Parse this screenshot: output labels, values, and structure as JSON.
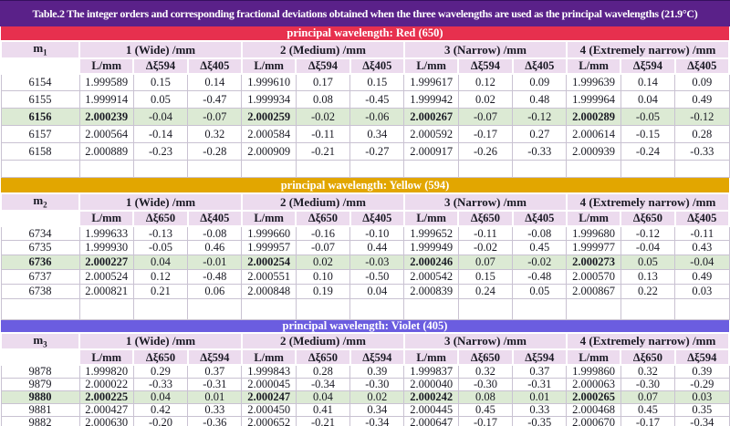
{
  "title": "Table.2 The integer orders and corresponding fractional deviations obtained when the three wavelengths are used as the principal wavelengths (21.9°C)",
  "colors": {
    "title_bg": "#5a2189",
    "red_bar": "#e7304e",
    "yellow_bar": "#e2a600",
    "violet_bar": "#6b5de0",
    "header_bg": "#ecdbee",
    "highlight_row": "#dcead4"
  },
  "group_headers": [
    "1 (Wide) /mm",
    "2 (Medium) /mm",
    "3 (Narrow) /mm",
    "4 (Extremely narrow) /mm"
  ],
  "sections": [
    {
      "id": "red",
      "bar_label": "principal wavelength: Red (650)",
      "bar_color": "#e7304e",
      "m_base": "m",
      "m_sub": "1",
      "sub_headers": [
        "L/mm",
        "Δξ594",
        "Δξ405"
      ],
      "rows": [
        {
          "m": "6154",
          "highlight": false,
          "values": [
            "1.999589",
            "0.15",
            "0.14",
            "1.999610",
            "0.17",
            "0.15",
            "1.999617",
            "0.12",
            "0.09",
            "1.999639",
            "0.14",
            "0.09"
          ]
        },
        {
          "m": "6155",
          "highlight": false,
          "values": [
            "1.999914",
            "0.05",
            "-0.47",
            "1.999934",
            "0.08",
            "-0.45",
            "1.999942",
            "0.02",
            "0.48",
            "1.999964",
            "0.04",
            "0.49"
          ]
        },
        {
          "m": "6156",
          "highlight": true,
          "values": [
            "2.000239",
            "-0.04",
            "-0.07",
            "2.000259",
            "-0.02",
            "-0.06",
            "2.000267",
            "-0.07",
            "-0.12",
            "2.000289",
            "-0.05",
            "-0.12"
          ]
        },
        {
          "m": "6157",
          "highlight": false,
          "values": [
            "2.000564",
            "-0.14",
            "0.32",
            "2.000584",
            "-0.11",
            "0.34",
            "2.000592",
            "-0.17",
            "0.27",
            "2.000614",
            "-0.15",
            "0.28"
          ]
        },
        {
          "m": "6158",
          "highlight": false,
          "values": [
            "2.000889",
            "-0.23",
            "-0.28",
            "2.000909",
            "-0.21",
            "-0.27",
            "2.000917",
            "-0.26",
            "-0.33",
            "2.000939",
            "-0.24",
            "-0.33"
          ]
        }
      ]
    },
    {
      "id": "yellow",
      "bar_label": "principal wavelength: Yellow (594)",
      "bar_color": "#e2a600",
      "m_base": "m",
      "m_sub": "2",
      "sub_headers": [
        "L/mm",
        "Δξ650",
        "Δξ405"
      ],
      "rows": [
        {
          "m": "6734",
          "highlight": false,
          "values": [
            "1.999633",
            "-0.13",
            "-0.08",
            "1.999660",
            "-0.16",
            "-0.10",
            "1.999652",
            "-0.11",
            "-0.08",
            "1.999680",
            "-0.12",
            "-0.11"
          ]
        },
        {
          "m": "6735",
          "highlight": false,
          "values": [
            "1.999930",
            "-0.05",
            "0.46",
            "1.999957",
            "-0.07",
            "0.44",
            "1.999949",
            "-0.02",
            "0.45",
            "1.999977",
            "-0.04",
            "0.43"
          ]
        },
        {
          "m": "6736",
          "highlight": true,
          "values": [
            "2.000227",
            "0.04",
            "-0.01",
            "2.000254",
            "0.02",
            "-0.03",
            "2.000246",
            "0.07",
            "-0.02",
            "2.000273",
            "0.05",
            "-0.04"
          ]
        },
        {
          "m": "6737",
          "highlight": false,
          "values": [
            "2.000524",
            "0.12",
            "-0.48",
            "2.000551",
            "0.10",
            "-0.50",
            "2.000542",
            "0.15",
            "-0.48",
            "2.000570",
            "0.13",
            "0.49"
          ]
        },
        {
          "m": "6738",
          "highlight": false,
          "values": [
            "2.000821",
            "0.21",
            "0.06",
            "2.000848",
            "0.19",
            "0.04",
            "2.000839",
            "0.24",
            "0.05",
            "2.000867",
            "0.22",
            "0.03"
          ]
        }
      ]
    },
    {
      "id": "violet",
      "bar_label": "principal wavelength: Violet (405)",
      "bar_color": "#6b5de0",
      "m_base": "m",
      "m_sub": "3",
      "sub_headers": [
        "L/mm",
        "Δξ650",
        "Δξ594"
      ],
      "rows": [
        {
          "m": "9878",
          "highlight": false,
          "values": [
            "1.999820",
            "0.29",
            "0.37",
            "1.999843",
            "0.28",
            "0.39",
            "1.999837",
            "0.32",
            "0.37",
            "1.999860",
            "0.32",
            "0.39"
          ]
        },
        {
          "m": "9879",
          "highlight": false,
          "values": [
            "2.000022",
            "-0.33",
            "-0.31",
            "2.000045",
            "-0.34",
            "-0.30",
            "2.000040",
            "-0.30",
            "-0.31",
            "2.000063",
            "-0.30",
            "-0.29"
          ]
        },
        {
          "m": "9880",
          "highlight": true,
          "values": [
            "2.000225",
            "0.04",
            "0.01",
            "2.000247",
            "0.04",
            "0.02",
            "2.000242",
            "0.08",
            "0.01",
            "2.000265",
            "0.07",
            "0.03"
          ]
        },
        {
          "m": "9881",
          "highlight": false,
          "values": [
            "2.000427",
            "0.42",
            "0.33",
            "2.000450",
            "0.41",
            "0.34",
            "2.000445",
            "0.45",
            "0.33",
            "2.000468",
            "0.45",
            "0.35"
          ]
        },
        {
          "m": "9882",
          "highlight": false,
          "values": [
            "2.000630",
            "-0.20",
            "-0.36",
            "2.000652",
            "-0.21",
            "-0.34",
            "2.000647",
            "-0.17",
            "-0.35",
            "2.000670",
            "-0.17",
            "-0.34"
          ]
        }
      ]
    }
  ]
}
